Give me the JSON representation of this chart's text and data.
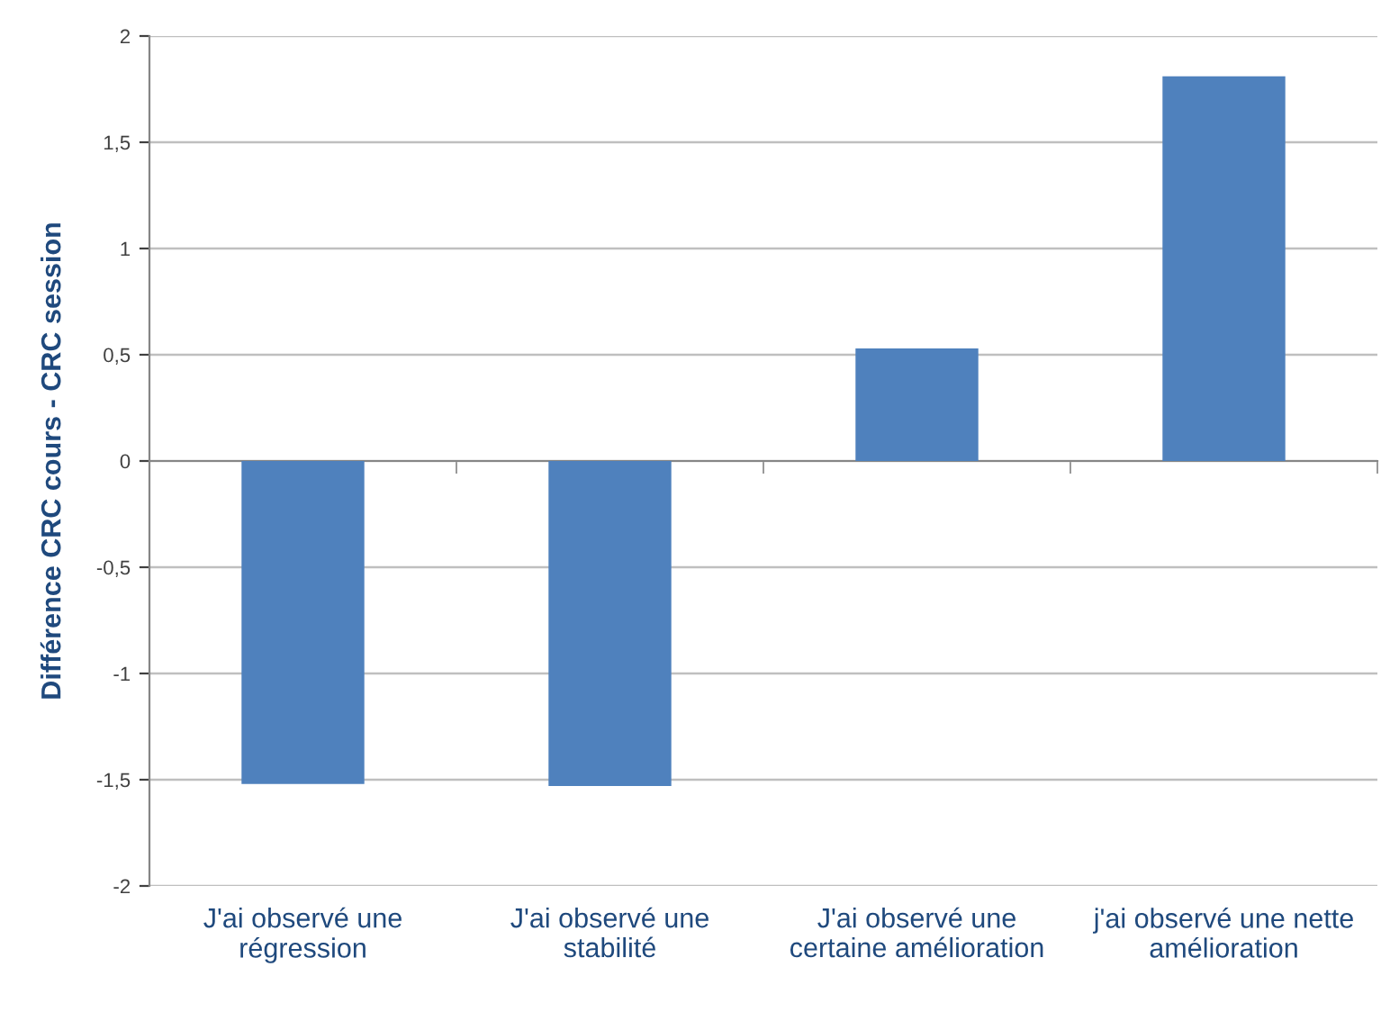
{
  "chart_data": {
    "type": "bar",
    "ylabel": "Différence CRC cours - CRC session",
    "categories": [
      "J'ai observé une\nrégression",
      "J'ai observé une\nstabilité",
      "J'ai observé une\ncertaine amélioration",
      "j'ai observé une nette\namélioration"
    ],
    "values": [
      -1.52,
      -1.53,
      0.53,
      1.81
    ],
    "color": "#4f81bd",
    "ylim": [
      -2,
      2
    ],
    "yticks": [
      -2,
      {
        "value": -1.5,
        "label": "-1,5"
      },
      -1,
      {
        "value": -0.5,
        "label": "-0,5"
      },
      0,
      {
        "value": 0.5,
        "label": "0,5"
      },
      1,
      {
        "value": 1.5,
        "label": "1,5"
      },
      2
    ],
    "grid": "y"
  }
}
